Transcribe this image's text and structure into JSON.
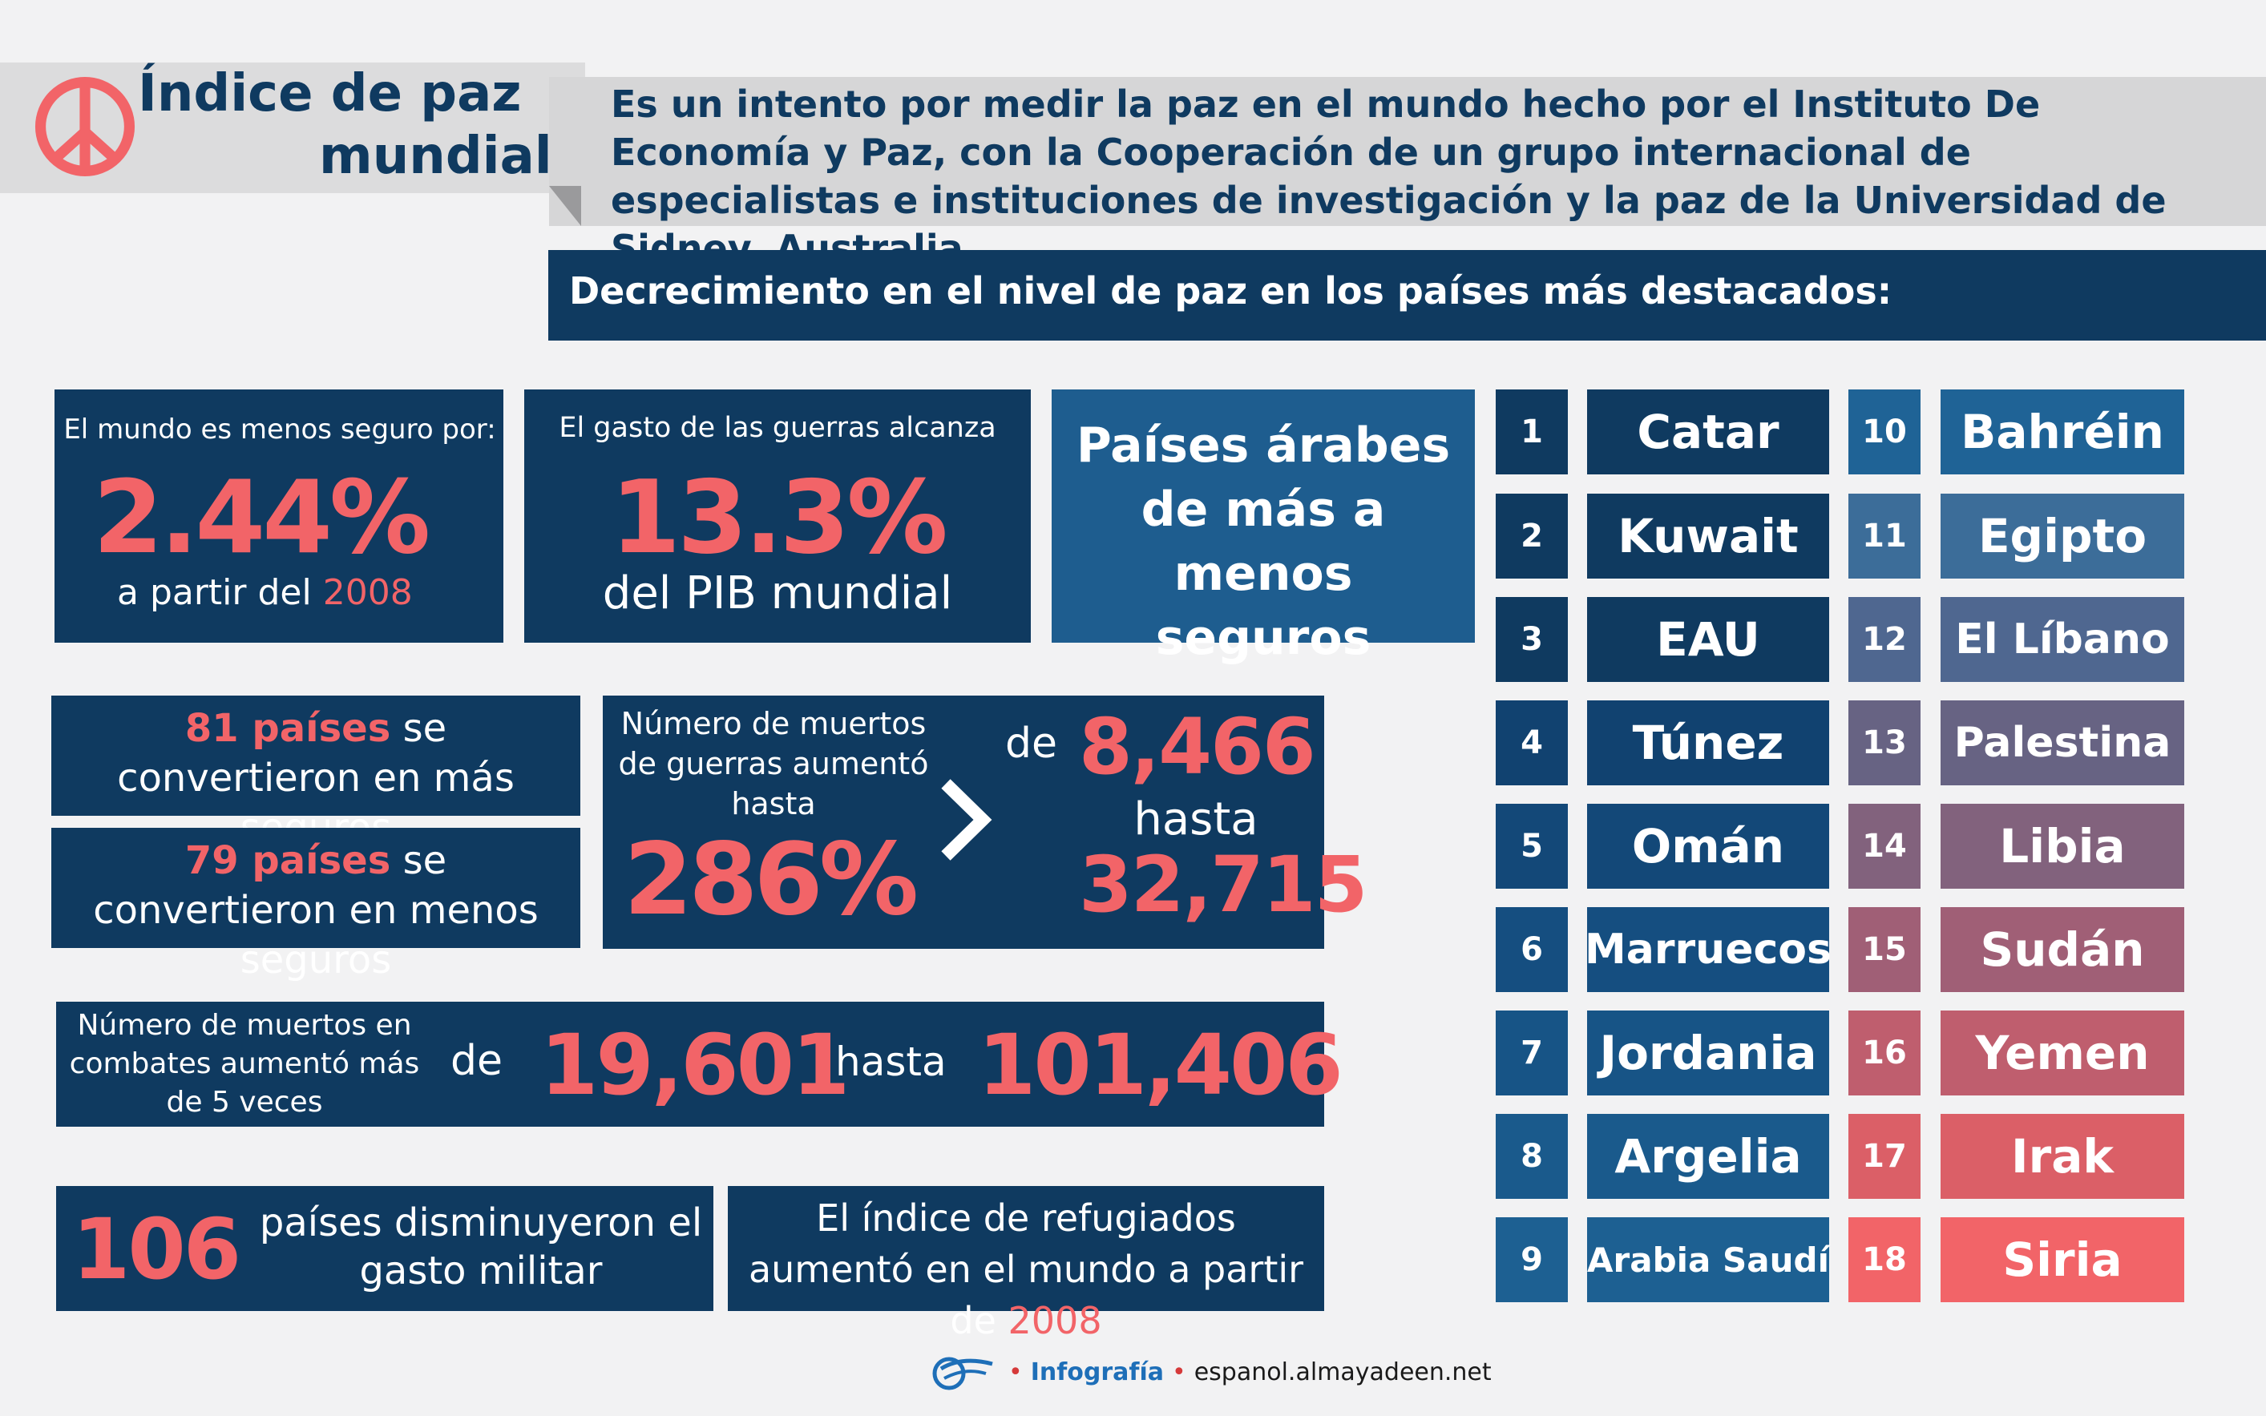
{
  "colors": {
    "navy": "#0f3a60",
    "accent_pink": "#f26468",
    "gray_band": "#dcdcdd",
    "mid_blue": "#1e5d8f"
  },
  "header": {
    "title_line1": "Índice de paz",
    "title_line2": "mundial",
    "description": "Es un intento por medir la paz en el mundo hecho por el Instituto De Economía y Paz, con la Cooperación de un grupo internacional de especialistas e instituciones de investigación y la paz de la Universidad de Sidney, Australia",
    "subtitle": "Decrecimiento en el nivel de paz en los países más destacados:",
    "icon": "peace-icon"
  },
  "stats": {
    "less_safe": {
      "label": "El mundo es menos seguro por:",
      "value": "2.44%",
      "prefix": "a partir del",
      "year": "2008"
    },
    "war_spending": {
      "label": "El gasto de las guerras alcanza",
      "value": "13.3%",
      "suffix": "del PIB mundial"
    },
    "arab_heading": "Países árabes de más a menos seguros",
    "safer_countries": {
      "number": "81 países",
      "text": "se convertieron en más seguros"
    },
    "less_safe_countries": {
      "number": "79 países",
      "text": "se convertieron en menos seguros"
    },
    "war_deaths": {
      "label": "Número de muertos de guerras aumentó hasta",
      "percent": "286%",
      "arrow": "chevron-right-icon",
      "from_label": "de",
      "from_value": "8,466",
      "to_label": "hasta",
      "to_value": "32,715"
    },
    "combat_deaths": {
      "label": "Número de muertos en combates aumentó más de 5 veces",
      "from_label": "de",
      "from_value": "19,601",
      "to_label": "hasta",
      "to_value": "101,406"
    },
    "military_spending": {
      "number": "106",
      "text": "países disminuyeron el gasto militar"
    },
    "refugees": {
      "text": "El índice de refugiados aumentó en el mundo a partir de",
      "year": "2008"
    }
  },
  "ranking": [
    {
      "rank": "1",
      "country": "Catar",
      "num_color": "#0f3a60",
      "name_color": "#0f3a60"
    },
    {
      "rank": "2",
      "country": "Kuwait",
      "num_color": "#0f3a60",
      "name_color": "#0f3a60"
    },
    {
      "rank": "3",
      "country": "EAU",
      "num_color": "#0f3a60",
      "name_color": "#0f3a60"
    },
    {
      "rank": "4",
      "country": "Túnez",
      "num_color": "#114270",
      "name_color": "#114270"
    },
    {
      "rank": "5",
      "country": "Omán",
      "num_color": "#134878",
      "name_color": "#134878"
    },
    {
      "rank": "6",
      "country": "Marruecos",
      "num_color": "#154e80",
      "name_color": "#154e80"
    },
    {
      "rank": "7",
      "country": "Jordania",
      "num_color": "#175486",
      "name_color": "#175486"
    },
    {
      "rank": "8",
      "country": "Argelia",
      "num_color": "#1a5a8c",
      "name_color": "#1a5a8c"
    },
    {
      "rank": "9",
      "country": "Arabia Saudí",
      "num_color": "#1d6092",
      "name_color": "#1d6092"
    },
    {
      "rank": "10",
      "country": "Bahréin",
      "num_color": "#1f6396",
      "name_color": "#1f6396"
    },
    {
      "rank": "11",
      "country": "Egipto",
      "num_color": "#3c6d99",
      "name_color": "#3c6d99"
    },
    {
      "rank": "12",
      "country": "El Líbano",
      "num_color": "#4f6790",
      "name_color": "#4f6790"
    },
    {
      "rank": "13",
      "country": "Palestina",
      "num_color": "#676383",
      "name_color": "#676383"
    },
    {
      "rank": "14",
      "country": "Libia",
      "num_color": "#82627d",
      "name_color": "#82627d"
    },
    {
      "rank": "15",
      "country": "Sudán",
      "num_color": "#a05f76",
      "name_color": "#a05f76"
    },
    {
      "rank": "16",
      "country": "Yemen",
      "num_color": "#bf5e6e",
      "name_color": "#bf5e6e"
    },
    {
      "rank": "17",
      "country": "Irak",
      "num_color": "#db5f67",
      "name_color": "#db5f67"
    },
    {
      "rank": "18",
      "country": "Siria",
      "num_color": "#f26468",
      "name_color": "#f26468"
    }
  ],
  "footer": {
    "icon": "almayadeen-logo-icon",
    "dot": "•",
    "label": "Infografía",
    "url": "espanol.almayadeen.net"
  }
}
